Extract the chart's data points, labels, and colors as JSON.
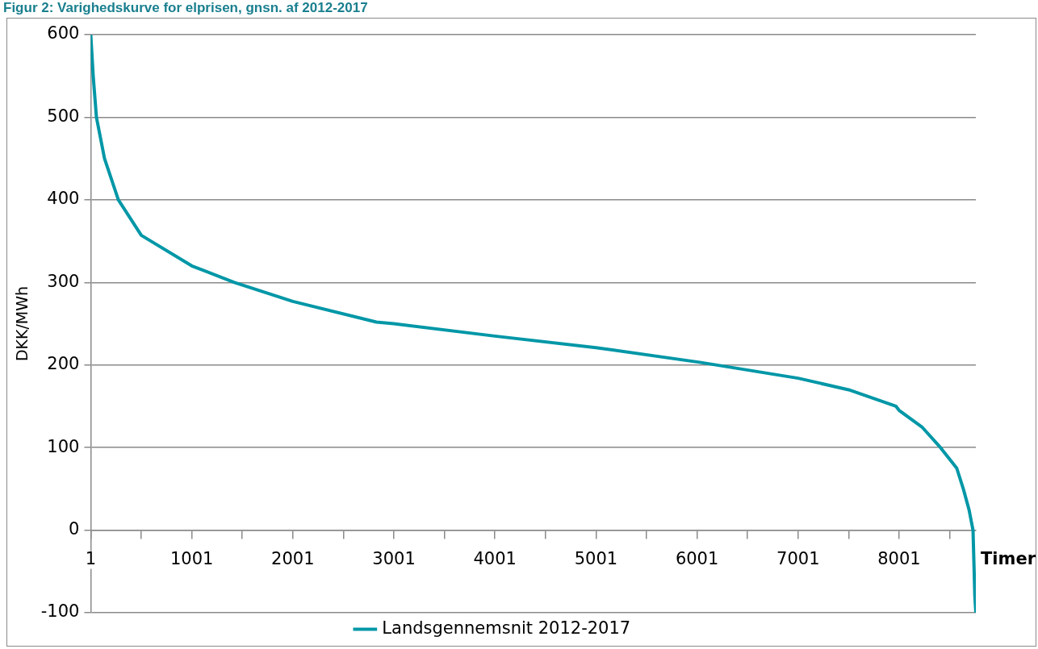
{
  "chart_data": {
    "type": "line",
    "title": "Figur 2: Varighedskurve for elprisen, gnsn. af 2012-2017",
    "xlabel": "Timer",
    "ylabel": "DKK/MWh",
    "series": [
      {
        "name": "Landsgennemsnit 2012-2017",
        "color": "#0097a7",
        "x": [
          1,
          25,
          57,
          137,
          274,
          501,
          1001,
          1423,
          2001,
          2828,
          3001,
          4001,
          5001,
          6040,
          7001,
          7501,
          7970,
          8001,
          8226,
          8410,
          8571,
          8636,
          8692,
          8732,
          8750,
          8760
        ],
        "values": [
          600,
          550,
          500,
          450,
          400,
          357,
          320,
          300,
          277,
          252,
          250,
          235,
          221,
          203,
          184,
          170,
          150,
          145,
          125,
          100,
          75,
          50,
          25,
          0,
          -80,
          -100
        ]
      }
    ],
    "xlim": [
      1,
      8760
    ],
    "xticks": [
      1,
      {
        "value": 501,
        "label": null
      },
      1001,
      {
        "value": 1501,
        "label": null
      },
      2001,
      {
        "value": 2501,
        "label": null
      },
      3001,
      {
        "value": 3501,
        "label": null
      },
      4001,
      {
        "value": 4501,
        "label": null
      },
      5001,
      {
        "value": 5501,
        "label": null
      },
      6001,
      {
        "value": 6501,
        "label": null
      },
      7001,
      {
        "value": 7501,
        "label": null
      },
      8001,
      {
        "value": 8501,
        "label": null
      }
    ],
    "ylim": [
      -100,
      600
    ],
    "yticks": [
      -100,
      0,
      100,
      200,
      300,
      400,
      500,
      600
    ],
    "grid": "y",
    "legend": "bottom",
    "marker": "none",
    "line_style": "solid"
  }
}
